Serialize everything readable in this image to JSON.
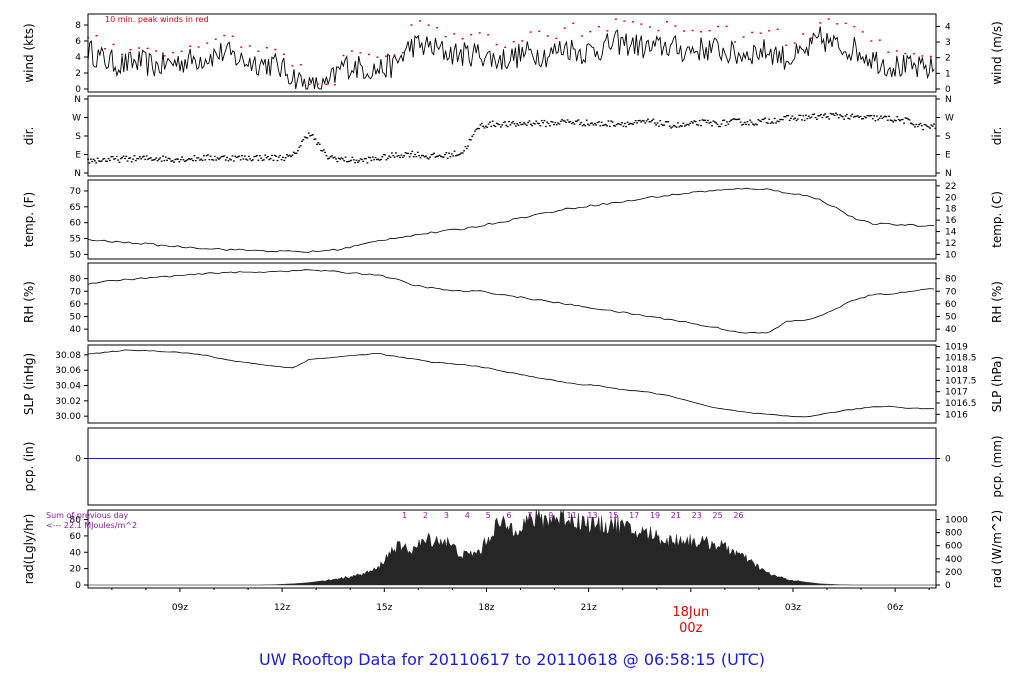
{
  "footer": {
    "title": "UW Rooftop Data for 20110617  to  20110618 @ 06:58:15  (UTC)"
  },
  "colors": {
    "frame": "#000000",
    "red": "#e60000",
    "purple": "#8c1aa6",
    "blue": "#1a1ae6",
    "fill": "#262626"
  },
  "chart_data": [
    {
      "type": "line",
      "ylabel": "wind (kts)",
      "ylabel_right": "wind (m/s)",
      "ylim": [
        0,
        9
      ],
      "yticks": [
        0,
        2,
        4,
        6,
        8
      ],
      "right_lim": [
        0,
        4.6
      ],
      "right_ticks": [
        0,
        1,
        2,
        3,
        4
      ],
      "annotation": "10 min. peak winds in red",
      "x_hours": [
        6.3,
        6.8,
        7.3,
        7.8,
        8.3,
        8.8,
        9.3,
        9.8,
        10.3,
        10.8,
        11.3,
        11.8,
        12.3,
        12.8,
        13.3,
        13.8,
        14.3,
        14.8,
        15.3,
        15.8,
        16.3,
        16.8,
        17.3,
        17.8,
        18.3,
        18.8,
        19.3,
        19.8,
        20.3,
        20.8,
        21.3,
        21.8,
        22.3,
        22.8,
        23.3,
        23.8,
        24.3,
        24.8,
        25.3,
        25.8,
        26.3,
        26.8,
        27.3,
        27.8,
        28.3,
        28.8,
        29.3,
        29.8,
        30.3,
        30.8
      ],
      "series": [
        {
          "values": [
            4.8,
            3.6,
            3.0,
            3.4,
            2.8,
            3.3,
            3.6,
            4.0,
            4.6,
            3.6,
            3.3,
            3.0,
            1.7,
            0.2,
            0.3,
            3.0,
            2.7,
            2.4,
            3.0,
            5.5,
            5.3,
            4.6,
            4.3,
            4.5,
            3.6,
            4.0,
            4.6,
            4.2,
            5.3,
            4.6,
            5.0,
            5.8,
            5.6,
            5.0,
            5.4,
            4.8,
            5.0,
            5.0,
            4.2,
            4.6,
            4.8,
            3.8,
            4.3,
            6.3,
            5.3,
            5.0,
            3.9,
            3.0,
            2.7,
            2.5
          ]
        },
        {
          "type": "peaks",
          "values": [
            6.6,
            5.4,
            4.6,
            5.2,
            4.4,
            4.9,
            5.4,
            6.0,
            6.6,
            5.4,
            4.9,
            4.6,
            2.8,
            0.8,
            0.8,
            4.6,
            4.2,
            3.8,
            4.6,
            8.2,
            7.9,
            6.9,
            6.5,
            6.7,
            5.4,
            6.0,
            6.9,
            6.3,
            7.9,
            6.9,
            7.5,
            8.6,
            8.4,
            7.5,
            8.1,
            7.2,
            7.5,
            7.5,
            6.3,
            6.9,
            7.2,
            5.7,
            6.5,
            8.6,
            7.9,
            7.5,
            5.9,
            4.6,
            4.1,
            3.8
          ]
        }
      ]
    },
    {
      "type": "scatter",
      "ylabel": "dir.",
      "ylabel_right": "dir.",
      "yticks": [
        "N",
        "E",
        "S",
        "W",
        "N"
      ],
      "x_hours": [
        6.3,
        6.8,
        7.3,
        7.8,
        8.3,
        8.8,
        9.3,
        9.8,
        10.3,
        10.8,
        11.3,
        11.8,
        12.3,
        12.8,
        13.3,
        13.8,
        14.3,
        14.8,
        15.3,
        15.8,
        16.3,
        16.8,
        17.3,
        17.8,
        18.3,
        18.8,
        19.3,
        19.8,
        20.3,
        20.8,
        21.3,
        21.8,
        22.3,
        22.8,
        23.3,
        23.8,
        24.3,
        24.8,
        25.3,
        25.8,
        26.3,
        26.8,
        27.3,
        27.8,
        28.3,
        28.8,
        29.3,
        29.8,
        30.3,
        30.8
      ],
      "values_deg": [
        60,
        65,
        68,
        70,
        72,
        68,
        70,
        74,
        74,
        73,
        75,
        74,
        78,
        200,
        80,
        65,
        60,
        70,
        85,
        95,
        80,
        85,
        100,
        230,
        240,
        235,
        245,
        240,
        250,
        245,
        238,
        242,
        240,
        250,
        235,
        230,
        245,
        240,
        250,
        245,
        255,
        265,
        270,
        275,
        280,
        270,
        268,
        265,
        255,
        225
      ]
    },
    {
      "type": "line",
      "ylabel": "temp. (F)",
      "ylabel_right": "temp. (C)",
      "ylim": [
        49.5,
        72.5
      ],
      "yticks": [
        50,
        55,
        60,
        65,
        70
      ],
      "right_ticks": [
        10,
        12,
        14,
        16,
        18,
        20,
        22
      ],
      "x_hours": [
        6.3,
        6.8,
        7.3,
        7.8,
        8.3,
        8.8,
        9.3,
        9.8,
        10.3,
        10.8,
        11.3,
        11.8,
        12.3,
        12.8,
        13.3,
        13.8,
        14.3,
        14.8,
        15.3,
        15.8,
        16.3,
        16.8,
        17.3,
        17.8,
        18.3,
        18.8,
        19.3,
        19.8,
        20.3,
        20.8,
        21.3,
        21.8,
        22.3,
        22.8,
        23.3,
        23.8,
        24.3,
        24.8,
        25.3,
        25.8,
        26.3,
        26.8,
        27.3,
        27.8,
        28.3,
        28.8,
        29.3,
        29.8,
        30.3,
        30.8
      ],
      "series": [
        {
          "values": [
            54.6,
            54.2,
            53.8,
            53.5,
            53.0,
            52.6,
            52.2,
            51.9,
            51.6,
            51.4,
            51.2,
            51.0,
            50.9,
            50.8,
            51.2,
            51.8,
            53.0,
            54.2,
            55.2,
            56.0,
            56.7,
            57.4,
            58.0,
            59.0,
            60.0,
            61.0,
            62.2,
            63.2,
            64.2,
            65.0,
            65.7,
            66.3,
            67.0,
            68.0,
            68.5,
            69.2,
            69.8,
            70.2,
            70.5,
            70.8,
            70.4,
            69.5,
            68.7,
            67.2,
            64.5,
            61.3,
            59.7,
            59.5,
            59.3,
            59.0
          ]
        }
      ]
    },
    {
      "type": "line",
      "ylabel": "RH (%)",
      "ylabel_right": "RH (%)",
      "ylim": [
        33,
        90
      ],
      "yticks": [
        40,
        50,
        60,
        70,
        80
      ],
      "right_ticks": [
        40,
        50,
        60,
        70,
        80
      ],
      "x_hours": [
        6.3,
        6.8,
        7.3,
        7.8,
        8.3,
        8.8,
        9.3,
        9.8,
        10.3,
        10.8,
        11.3,
        11.8,
        12.3,
        12.8,
        13.3,
        13.8,
        14.3,
        14.8,
        15.3,
        15.8,
        16.3,
        16.8,
        17.3,
        17.8,
        18.3,
        18.8,
        19.3,
        19.8,
        20.3,
        20.8,
        21.3,
        21.8,
        22.3,
        22.8,
        23.3,
        23.8,
        24.3,
        24.8,
        25.3,
        25.8,
        26.3,
        26.8,
        27.3,
        27.8,
        28.3,
        28.8,
        29.3,
        29.8,
        30.3,
        30.8
      ],
      "series": [
        {
          "values": [
            76,
            78,
            79,
            80,
            81,
            82,
            83,
            84,
            85,
            85,
            85,
            86,
            86,
            87,
            86,
            85,
            84,
            83,
            80,
            75,
            73,
            71,
            70,
            70,
            68,
            66,
            64,
            62,
            60,
            58,
            56,
            54,
            52,
            50,
            48,
            46,
            43,
            41,
            38,
            37,
            37,
            46,
            47,
            50,
            57,
            63,
            67,
            68,
            69,
            72
          ]
        }
      ]
    },
    {
      "type": "line",
      "ylabel": "SLP (inHg)",
      "ylabel_right": "SLP (hPa)",
      "ylim": [
        29.995,
        30.089
      ],
      "yticks": [
        30.0,
        30.02,
        30.04,
        30.06,
        30.08
      ],
      "right_ticks": [
        1016,
        1016.5,
        1017,
        1017.5,
        1018,
        1018.5,
        1019
      ],
      "x_hours": [
        6.3,
        6.8,
        7.3,
        7.8,
        8.3,
        8.8,
        9.3,
        9.8,
        10.3,
        10.8,
        11.3,
        11.8,
        12.3,
        12.8,
        13.3,
        13.8,
        14.3,
        14.8,
        15.3,
        15.8,
        16.3,
        16.8,
        17.3,
        17.8,
        18.3,
        18.8,
        19.3,
        19.8,
        20.3,
        20.8,
        21.3,
        21.8,
        22.3,
        22.8,
        23.3,
        23.8,
        24.3,
        24.8,
        25.3,
        25.8,
        26.3,
        26.8,
        27.3,
        27.8,
        28.3,
        28.8,
        29.3,
        29.8,
        30.3,
        30.8
      ],
      "series": [
        {
          "values": [
            30.081,
            30.083,
            30.086,
            30.086,
            30.085,
            30.084,
            30.082,
            30.079,
            30.074,
            30.071,
            30.068,
            30.065,
            30.063,
            30.074,
            30.076,
            30.078,
            30.08,
            30.082,
            30.078,
            30.075,
            30.071,
            30.069,
            30.067,
            30.065,
            30.06,
            30.056,
            30.052,
            30.048,
            30.044,
            30.041,
            30.04,
            30.036,
            30.033,
            30.031,
            30.027,
            30.022,
            30.015,
            30.01,
            30.007,
            30.004,
            30.002,
            30.0,
            29.999,
            30.002,
            30.006,
            30.009,
            30.012,
            30.013,
            30.011,
            30.01
          ]
        }
      ]
    },
    {
      "type": "line",
      "ylabel": "pcp. (in)",
      "ylabel_right": "pcp. (mm)",
      "yticks": [
        0
      ],
      "right_ticks": [
        0
      ],
      "series": [
        {
          "values": [
            0,
            0
          ]
        }
      ]
    },
    {
      "type": "area",
      "ylabel": "rad(Lgly/hr)",
      "ylabel_right": "rad (W/m^2)",
      "ylim": [
        0,
        88
      ],
      "yticks": [
        0,
        20,
        40,
        60,
        80
      ],
      "right_ticks": [
        0,
        200,
        400,
        600,
        800,
        1000
      ],
      "annotation_lines": [
        "Sum of previous day",
        "<--- 22.1 MJoules/m^2"
      ],
      "top_markers": [
        "1",
        "2",
        "3",
        "4",
        "5",
        "6",
        "7",
        "9",
        "11",
        "13",
        "15",
        "17",
        "19",
        "21",
        "23",
        "25",
        "26"
      ],
      "x_hours": [
        6.3,
        6.8,
        7.3,
        7.8,
        8.3,
        8.8,
        9.3,
        9.8,
        10.3,
        10.8,
        11.3,
        11.8,
        12.3,
        12.8,
        13.3,
        13.8,
        14.3,
        14.8,
        15.3,
        15.8,
        16.3,
        16.8,
        17.3,
        17.8,
        18.3,
        18.8,
        19.3,
        19.8,
        20.3,
        20.8,
        21.3,
        21.8,
        22.3,
        22.8,
        23.3,
        23.8,
        24.3,
        24.8,
        25.3,
        25.8,
        26.3,
        26.8,
        27.3,
        27.8,
        28.3,
        28.8,
        29.3,
        29.8,
        30.3,
        30.8
      ],
      "series": [
        {
          "values": [
            0,
            0,
            0,
            0,
            0,
            0,
            0,
            0,
            0,
            0,
            0,
            0.5,
            1.5,
            3,
            6,
            10,
            14,
            22,
            52,
            48,
            62,
            60,
            40,
            45,
            82,
            78,
            88,
            90,
            92,
            86,
            80,
            84,
            72,
            70,
            60,
            62,
            58,
            55,
            45,
            30,
            15,
            8,
            4,
            1.5,
            0.5,
            0,
            0,
            0,
            0,
            0
          ]
        }
      ]
    }
  ],
  "x_axis": {
    "tick_labels": [
      "09z",
      "12z",
      "15z",
      "18z",
      "21z",
      "00z",
      "03z",
      "06z"
    ],
    "day_label": "18Jun",
    "day_sublabel": "00z"
  }
}
